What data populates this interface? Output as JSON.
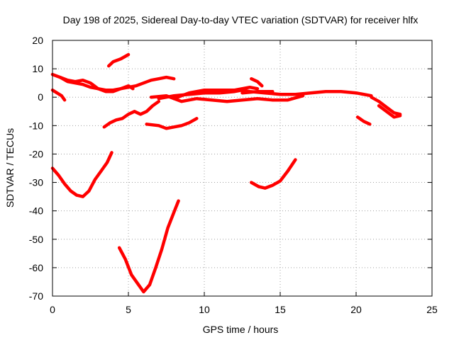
{
  "chart_data": {
    "type": "line",
    "title": "Day 198 of 2025, Sidereal Day-to-day VTEC variation (SDTVAR) for receiver hlfx",
    "xlabel": "GPS time / hours",
    "ylabel": "SDTVAR / TECUs",
    "xlim": [
      0,
      25
    ],
    "ylim": [
      -70,
      20
    ],
    "xticks": [
      0,
      5,
      10,
      15,
      20,
      25
    ],
    "yticks": [
      -70,
      -60,
      -50,
      -40,
      -30,
      -20,
      -10,
      0,
      10,
      20
    ],
    "grid": true,
    "line_color": "#ff0000",
    "series": [
      {
        "name": "arc-1",
        "x": [
          0,
          0.5,
          1.0,
          1.5,
          2.0,
          2.5,
          3.0,
          3.5,
          4.0,
          4.5,
          5.0,
          5.5,
          6.0,
          6.5,
          7.0,
          7.5,
          8.0
        ],
        "y": [
          8,
          7,
          5.5,
          5,
          4.5,
          3.5,
          3,
          2.5,
          2.5,
          3,
          3.5,
          4,
          5,
          6,
          6.5,
          7,
          6.5
        ]
      },
      {
        "name": "arc-2",
        "x": [
          0.5,
          1.0,
          1.5,
          2.0,
          2.5,
          3.0,
          3.5,
          4.0,
          4.5,
          5.0,
          5.3
        ],
        "y": [
          7,
          6,
          5.5,
          6,
          5,
          3,
          2,
          2,
          3,
          4,
          3
        ]
      },
      {
        "name": "arc-3",
        "x": [
          0,
          0.3,
          0.6,
          0.8
        ],
        "y": [
          2.5,
          1.5,
          0.5,
          -1
        ]
      },
      {
        "name": "arc-4",
        "x": [
          3.7,
          4.0,
          4.5,
          5.0
        ],
        "y": [
          11,
          12.5,
          13.5,
          15
        ]
      },
      {
        "name": "arc-5",
        "x": [
          3.4,
          3.8,
          4.2,
          4.6,
          5.0,
          5.4,
          5.8,
          6.2,
          6.6,
          7.0
        ],
        "y": [
          -10.5,
          -9,
          -8,
          -7.5,
          -6,
          -5,
          -6,
          -5,
          -3,
          -1.5
        ]
      },
      {
        "name": "arc-6",
        "x": [
          7.0,
          8.0,
          9.0,
          10.0,
          11.0,
          12.0,
          12.5,
          13.0,
          14.0,
          15.0,
          16.0,
          17.0,
          18.0,
          19.0,
          20.0,
          21.0
        ],
        "y": [
          -0.5,
          0.5,
          1,
          1.5,
          1.5,
          2,
          2.5,
          2,
          1.5,
          1,
          1,
          1.5,
          2,
          2,
          1.5,
          0.5
        ]
      },
      {
        "name": "arc-7",
        "x": [
          6.5,
          7.5,
          8.5,
          9.5,
          10.5,
          11.5,
          12.5,
          13.5,
          14.5,
          15.5,
          16.5
        ],
        "y": [
          0,
          0.5,
          -1.5,
          -0.5,
          -1,
          -1.5,
          -1,
          -0.5,
          -1,
          -1,
          0.5
        ]
      },
      {
        "name": "arc-8",
        "x": [
          8.0,
          9.0,
          10.0,
          11.0,
          12.0,
          13.0,
          13.5
        ],
        "y": [
          -0.5,
          1.5,
          2.5,
          2.5,
          2.5,
          3.5,
          3
        ]
      },
      {
        "name": "arc-9",
        "x": [
          13.1,
          13.5,
          13.8
        ],
        "y": [
          6.5,
          5.5,
          4
        ]
      },
      {
        "name": "arc-10",
        "x": [
          12.5,
          13.5,
          14.5
        ],
        "y": [
          1.5,
          2,
          2
        ]
      },
      {
        "name": "arc-11",
        "x": [
          6.2,
          7.0,
          7.5,
          8.0,
          8.5,
          9.0,
          9.5
        ],
        "y": [
          -9.5,
          -10,
          -11,
          -10.5,
          -10,
          -9,
          -7.5
        ]
      },
      {
        "name": "arc-12",
        "x": [
          21.0,
          21.5,
          22.0,
          22.5,
          22.9
        ],
        "y": [
          0,
          -1.5,
          -3.5,
          -5.5,
          -6
        ]
      },
      {
        "name": "arc-13",
        "x": [
          21.5,
          22.0,
          22.5,
          22.9
        ],
        "y": [
          -3,
          -5,
          -7,
          -6.5
        ]
      },
      {
        "name": "arc-14",
        "x": [
          20.1,
          20.5,
          20.9
        ],
        "y": [
          -7,
          -8.5,
          -9.5
        ]
      },
      {
        "name": "arc-15",
        "x": [
          0,
          0.4,
          0.8,
          1.2,
          1.6,
          2.0,
          2.4,
          2.8,
          3.2,
          3.6,
          3.9
        ],
        "y": [
          -25,
          -27.5,
          -30.5,
          -33,
          -34.5,
          -35,
          -33,
          -29,
          -26,
          -23,
          -19.5
        ]
      },
      {
        "name": "arc-16",
        "x": [
          4.4,
          4.8,
          5.2,
          5.6,
          6.0,
          6.4,
          6.8,
          7.2,
          7.6,
          8.0,
          8.3
        ],
        "y": [
          -53,
          -57,
          -62.5,
          -65.5,
          -68.5,
          -66,
          -60,
          -53.5,
          -46,
          -40.5,
          -36.5
        ]
      },
      {
        "name": "arc-17",
        "x": [
          13.1,
          13.6,
          14.0,
          14.5,
          15.0,
          15.5,
          16.0
        ],
        "y": [
          -30,
          -31.5,
          -32,
          -31,
          -29.5,
          -26,
          -22
        ]
      }
    ]
  }
}
